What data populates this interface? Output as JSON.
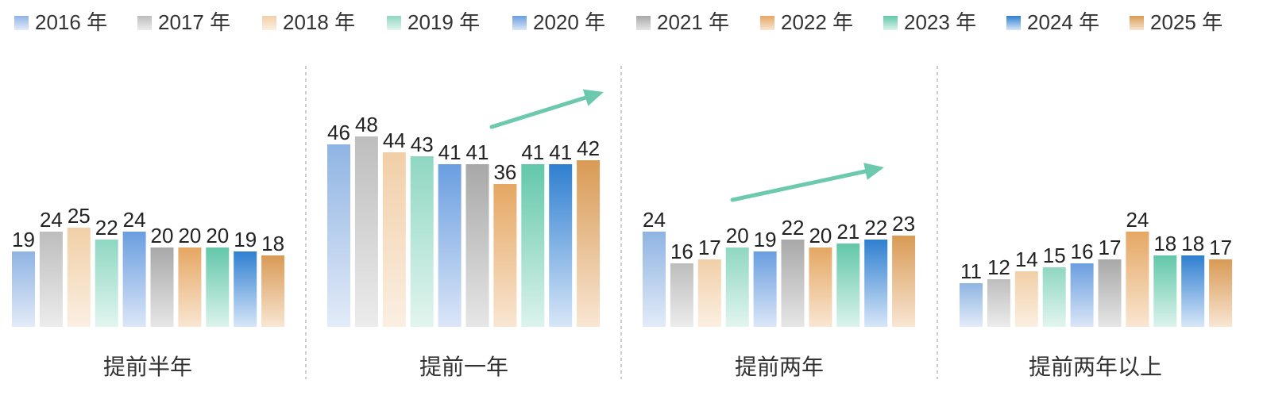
{
  "chart_data": {
    "type": "bar",
    "title": "",
    "xlabel": "",
    "ylabel": "",
    "legend_position": "top",
    "grid": false,
    "ylim": [
      0,
      50
    ],
    "categories": [
      "提前半年",
      "提前一年",
      "提前两年",
      "提前两年以上"
    ],
    "series": [
      {
        "name": "2016 年",
        "color_top": "#8fb4e3",
        "color_bottom": "#e3ebf8",
        "values": [
          19,
          46,
          24,
          11
        ]
      },
      {
        "name": "2017 年",
        "color_top": "#bdbdbd",
        "color_bottom": "#ececec",
        "values": [
          24,
          48,
          16,
          12
        ]
      },
      {
        "name": "2018 年",
        "color_top": "#f1cfa7",
        "color_bottom": "#fbefe2",
        "values": [
          25,
          44,
          17,
          14
        ]
      },
      {
        "name": "2019 年",
        "color_top": "#8fd7c2",
        "color_bottom": "#e2f5ef",
        "values": [
          22,
          43,
          20,
          15
        ]
      },
      {
        "name": "2020 年",
        "color_top": "#6a9ee0",
        "color_bottom": "#dbe6f7",
        "values": [
          24,
          41,
          19,
          16
        ]
      },
      {
        "name": "2021 年",
        "color_top": "#a8a8a8",
        "color_bottom": "#e6e6e6",
        "values": [
          20,
          41,
          22,
          17
        ]
      },
      {
        "name": "2022 年",
        "color_top": "#e5a763",
        "color_bottom": "#f9e6d2",
        "values": [
          20,
          36,
          20,
          24
        ]
      },
      {
        "name": "2023 年",
        "color_top": "#62c7a9",
        "color_bottom": "#dcf3ec",
        "values": [
          20,
          41,
          21,
          18
        ]
      },
      {
        "name": "2024 年",
        "color_top": "#2f7fd0",
        "color_bottom": "#d7e6f8",
        "values": [
          19,
          41,
          22,
          18
        ]
      },
      {
        "name": "2025 年",
        "color_top": "#d99a55",
        "color_bottom": "#f8e6d3",
        "values": [
          18,
          42,
          23,
          17
        ]
      }
    ],
    "annotations": [
      {
        "type": "trend-arrow",
        "group": 1,
        "direction": "up",
        "color": "#6cc9ad"
      },
      {
        "type": "trend-arrow",
        "group": 2,
        "direction": "up",
        "color": "#6cc9ad"
      }
    ]
  }
}
